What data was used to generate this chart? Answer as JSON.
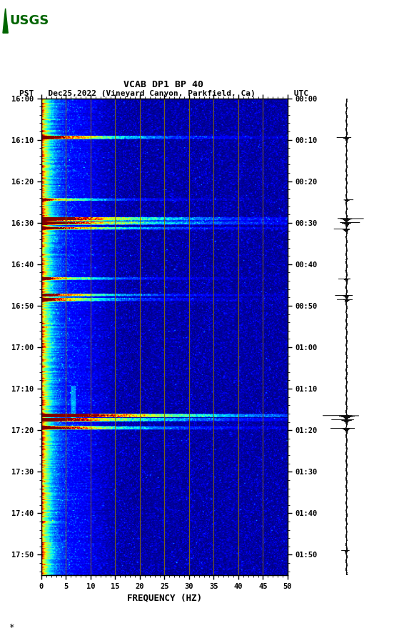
{
  "title_line1": "VCAB DP1 BP 40",
  "title_line2": "PST   Dec25,2022 (Vineyard Canyon, Parkfield, Ca)        UTC",
  "xlabel": "FREQUENCY (HZ)",
  "freq_min": 0,
  "freq_max": 50,
  "pst_yticks": [
    "16:00",
    "16:10",
    "16:20",
    "16:30",
    "16:40",
    "16:50",
    "17:00",
    "17:10",
    "17:20",
    "17:30",
    "17:40",
    "17:50"
  ],
  "utc_yticks": [
    "00:00",
    "00:10",
    "00:20",
    "00:30",
    "00:40",
    "00:50",
    "01:00",
    "01:10",
    "01:20",
    "01:30",
    "01:40",
    "01:50"
  ],
  "freq_ticks": [
    0,
    5,
    10,
    15,
    20,
    25,
    30,
    35,
    40,
    45,
    50
  ],
  "vert_grid_freqs": [
    5,
    10,
    15,
    20,
    25,
    30,
    35,
    40,
    45
  ],
  "fig_bg": "#ffffff",
  "usgs_logo_color": "#006400",
  "grid_color": "#8B7000",
  "tick_minutes": [
    0,
    10,
    20,
    30,
    40,
    50,
    60,
    70,
    80,
    90,
    100,
    110
  ],
  "total_minutes": 115,
  "event_times_min": [
    9.5,
    24.5,
    29.0,
    30.0,
    31.5,
    43.5,
    47.5,
    48.5,
    76.5,
    77.5,
    79.5
  ],
  "event_amps": [
    0.9,
    0.55,
    1.2,
    1.0,
    0.9,
    0.65,
    0.8,
    0.7,
    1.5,
    1.1,
    1.0
  ],
  "event_bw": [
    15,
    12,
    18,
    20,
    16,
    12,
    14,
    12,
    22,
    18,
    15
  ]
}
